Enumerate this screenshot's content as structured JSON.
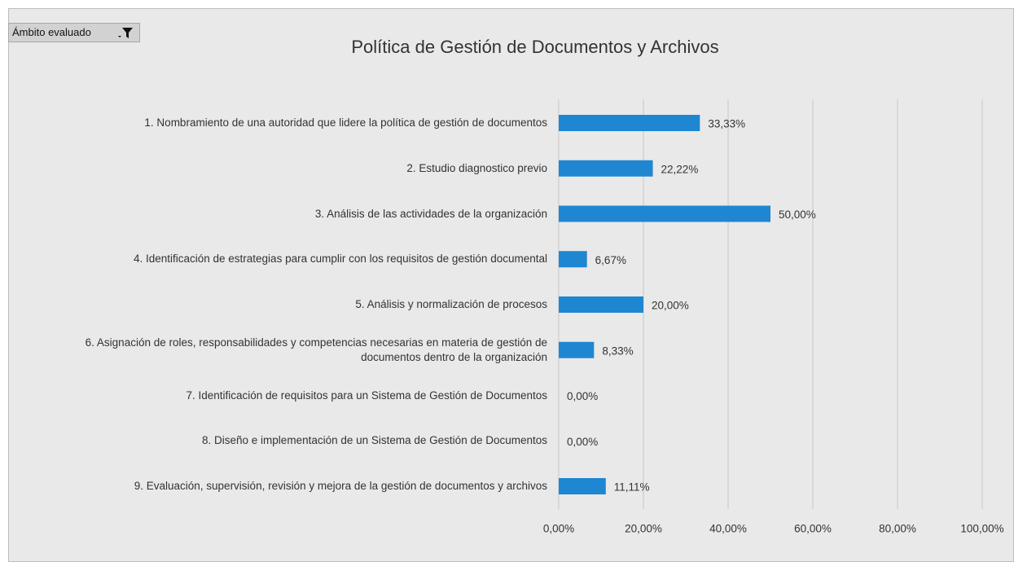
{
  "filter": {
    "label": "Ámbito evaluado"
  },
  "chart_data": {
    "type": "barh",
    "title": "Política de Gestión de Documentos y Archivos",
    "categories": [
      "1. Nombramiento de una autoridad que lidere la política de gestión de documentos",
      "2. Estudio diagnostico previo",
      "3. Análisis de las actividades de la organización",
      "4. Identificación de estrategias para cumplir con los requisitos de gestión documental",
      "5. Análisis y normalización de procesos",
      "6. Asignación de roles, responsabilidades y competencias necesarias en materia de gestión de documentos dentro de la organización",
      "7. Identificación de requisitos para un Sistema de Gestión de Documentos",
      "8. Diseño e implementación de un Sistema de Gestión de Documentos",
      "9. Evaluación, supervisión, revisión y mejora de la gestión de documentos y archivos"
    ],
    "values": [
      33.33,
      22.22,
      50,
      6.67,
      20,
      8.33,
      0,
      0,
      11.11
    ],
    "value_labels": [
      "33,33%",
      "22,22%",
      "50,00%",
      "6,67%",
      "20,00%",
      "8,33%",
      "0,00%",
      "0,00%",
      "11,11%"
    ],
    "color": "#1f86d2",
    "xlim": [
      0,
      100
    ],
    "xticks": [
      {
        "value": 0,
        "label": "0,00%"
      },
      {
        "value": 20,
        "label": "20,00%"
      },
      {
        "value": 40,
        "label": "40,00%"
      },
      {
        "value": 60,
        "label": "60,00%"
      },
      {
        "value": 80,
        "label": "80,00%"
      },
      {
        "value": 100,
        "label": "100,00%"
      }
    ],
    "grid": true
  }
}
